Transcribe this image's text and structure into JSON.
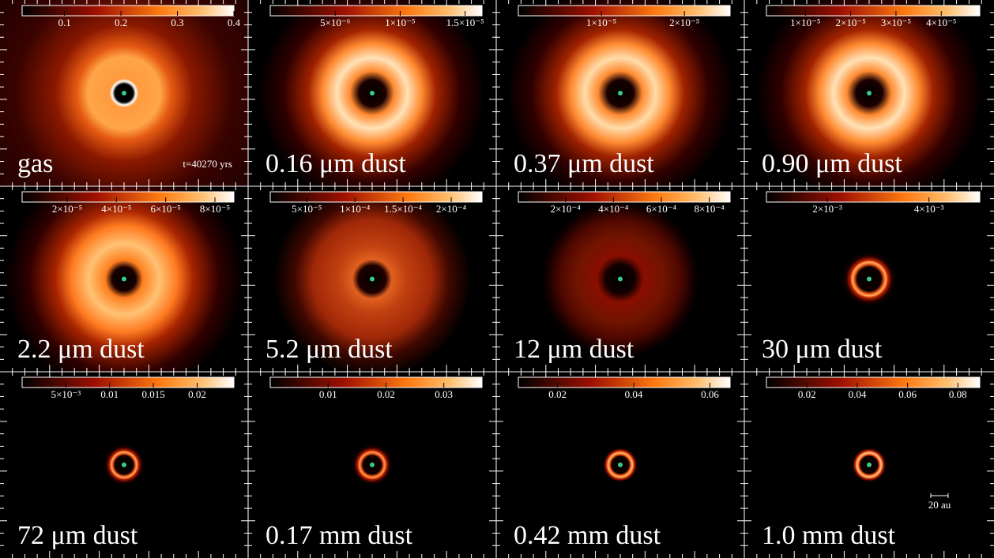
{
  "panels": [
    {
      "label": "gas",
      "time": "t=40270 yrs",
      "colorbar": {
        "lim": [
          0.025,
          0.4
        ],
        "ticks": [
          0.1,
          0.2,
          0.3,
          0.4
        ]
      }
    },
    {
      "label": "0.16 μm dust",
      "colorbar": {
        "lim": [
          0,
          1.63e-05
        ],
        "ticks": [
          {
            "value": 5e-06,
            "label": "5×10⁻⁶"
          },
          {
            "value": 1e-05,
            "label": "1×10⁻⁵"
          },
          {
            "value": 1.5e-05,
            "label": "1.5×10⁻⁵"
          }
        ]
      }
    },
    {
      "label": "0.37 μm dust",
      "colorbar": {
        "lim": [
          0,
          2.55e-05
        ],
        "ticks": [
          {
            "value": 1e-05,
            "label": "1×10⁻⁵"
          },
          {
            "value": 2e-05,
            "label": "2×10⁻⁵"
          }
        ]
      }
    },
    {
      "label": "0.90 μm dust",
      "colorbar": {
        "lim": [
          1.4e-06,
          4.85e-05
        ],
        "ticks": [
          {
            "value": 1e-05,
            "label": "1×10⁻⁵"
          },
          {
            "value": 2e-05,
            "label": "2×10⁻⁵"
          },
          {
            "value": 3e-05,
            "label": "3×10⁻⁵"
          },
          {
            "value": 4e-05,
            "label": "4×10⁻⁵"
          }
        ]
      }
    },
    {
      "label": "2.2 μm dust",
      "colorbar": {
        "lim": [
          1.7e-06,
          8.77e-05
        ],
        "ticks": [
          {
            "value": 2e-05,
            "label": "2×10⁻⁵"
          },
          {
            "value": 4e-05,
            "label": "4×10⁻⁵"
          },
          {
            "value": 6e-05,
            "label": "6×10⁻⁵"
          },
          {
            "value": 8e-05,
            "label": "8×10⁻⁵"
          }
        ]
      }
    },
    {
      "label": "5.2 μm dust",
      "colorbar": {
        "lim": [
          1.2e-05,
          0.000232
        ],
        "ticks": [
          {
            "value": 5e-05,
            "label": "5×10⁻⁵"
          },
          {
            "value": 0.0001,
            "label": "1×10⁻⁴"
          },
          {
            "value": 0.00015,
            "label": "1.5×10⁻⁴"
          },
          {
            "value": 0.0002,
            "label": "2×10⁻⁴"
          }
        ]
      }
    },
    {
      "label": "12 μm dust",
      "colorbar": {
        "lim": [
          3e-06,
          0.000887
        ],
        "ticks": [
          {
            "value": 0.0002,
            "label": "2×10⁻⁴"
          },
          {
            "value": 0.0004,
            "label": "4×10⁻⁴"
          },
          {
            "value": 0.0006,
            "label": "6×10⁻⁴"
          },
          {
            "value": 0.0008,
            "label": "8×10⁻⁴"
          }
        ]
      }
    },
    {
      "label": "30 μm dust",
      "colorbar": {
        "lim": [
          0.0008,
          0.005
        ],
        "ticks": [
          {
            "value": 0.002,
            "label": "2×10⁻³"
          },
          {
            "value": 0.004,
            "label": "4×10⁻³"
          }
        ]
      }
    },
    {
      "label": "72 μm dust",
      "colorbar": {
        "lim": [
          0,
          0.0242
        ],
        "ticks": [
          {
            "value": 0.005,
            "label": "5×10⁻³"
          },
          0.01,
          0.015,
          0.02
        ]
      }
    },
    {
      "label": "0.17 mm dust",
      "colorbar": {
        "lim": [
          0,
          0.0366
        ],
        "ticks": [
          0.01,
          0.02,
          0.03
        ]
      }
    },
    {
      "label": "0.42 mm dust",
      "colorbar": {
        "lim": [
          0.0097,
          0.0653
        ],
        "ticks": [
          0.02,
          0.04,
          0.06
        ]
      }
    },
    {
      "label": "1.0 mm dust",
      "scale_bar": "20 au",
      "colorbar": {
        "lim": [
          0.0039,
          0.0887
        ],
        "ticks": [
          0.02,
          0.04,
          0.06,
          0.08
        ]
      }
    }
  ]
}
